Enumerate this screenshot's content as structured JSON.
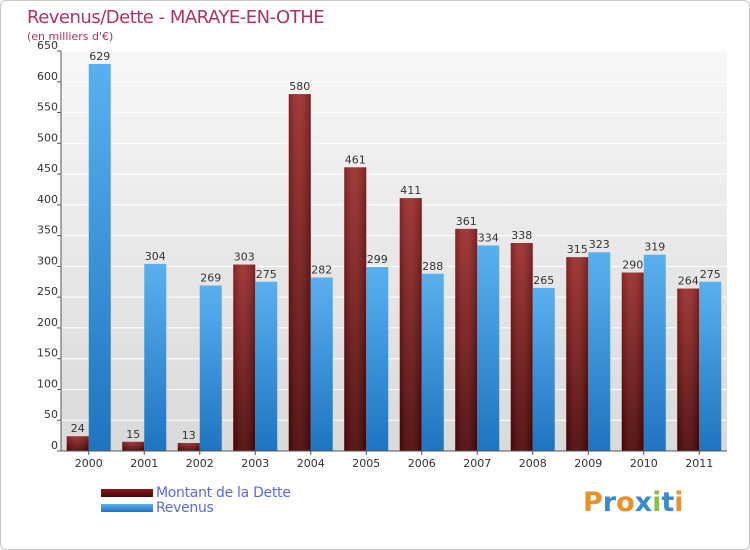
{
  "title": "Revenus/Dette - MARAYE-EN-OTHE",
  "subtitle": "(en milliers d'€)",
  "colors": {
    "dette": "#8b1a1a",
    "revenus": "#3a9ae0",
    "title": "#b0306a",
    "legend_text": "#5a6ae0"
  },
  "legend": [
    {
      "label": "Montant de la Dette",
      "color": "#6b0f0f"
    },
    {
      "label": "Revenus",
      "color": "#3a9ae0"
    }
  ],
  "logo": {
    "text": "Proxiti"
  },
  "chart_data": {
    "type": "bar",
    "categories": [
      "2000",
      "2001",
      "2002",
      "2003",
      "2004",
      "2005",
      "2006",
      "2007",
      "2008",
      "2009",
      "2010",
      "2011"
    ],
    "series": [
      {
        "name": "Montant de la Dette",
        "values": [
          24,
          15,
          13,
          303,
          580,
          461,
          411,
          361,
          338,
          315,
          290,
          264
        ]
      },
      {
        "name": "Revenus",
        "values": [
          629,
          304,
          269,
          275,
          282,
          299,
          288,
          334,
          265,
          323,
          319,
          275
        ]
      }
    ],
    "title": "Revenus/Dette - MARAYE-EN-OTHE",
    "ylabel": "(en milliers d'€)",
    "ylim": [
      0,
      650
    ],
    "yticks": [
      0,
      50,
      100,
      150,
      200,
      250,
      300,
      350,
      400,
      450,
      500,
      550,
      600,
      650
    ],
    "grid": true,
    "legend_position": "bottom-left"
  }
}
